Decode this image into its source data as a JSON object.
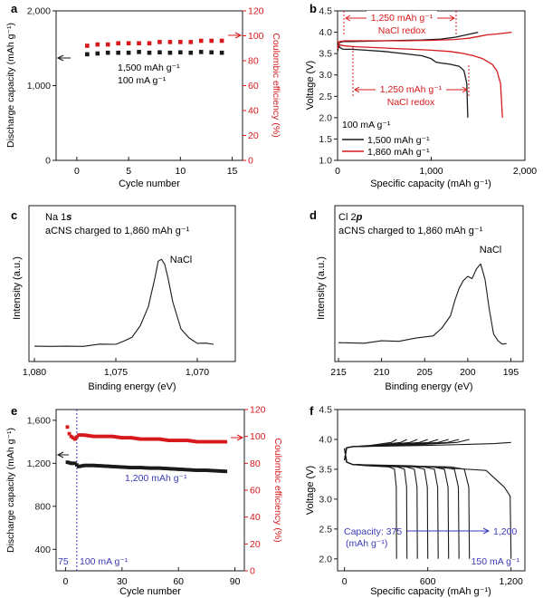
{
  "colors": {
    "black": "#1a1a1a",
    "red": "#d7191c",
    "blue": "#3a3ab8"
  },
  "chart_data": [
    {
      "panel": "a",
      "type": "scatter",
      "xlabel": "Cycle number",
      "ylabel_left": "Discharge capacity (mAh g⁻¹)",
      "ylabel_right": "Coulombic efficiency (%)",
      "xlim": [
        -2,
        16
      ],
      "ylim_left": [
        0,
        2000
      ],
      "ylim_right": [
        0,
        120
      ],
      "xticks": [
        "0",
        "5",
        "10",
        "15"
      ],
      "yticks_left": [
        "0",
        "1,000",
        "2,000"
      ],
      "yticks_right": [
        "0",
        "20",
        "40",
        "60",
        "80",
        "100",
        "120"
      ],
      "annotation_1": "1,500 mAh g⁻¹",
      "annotation_2": "100 mA g⁻¹",
      "series": [
        {
          "name": "Discharge capacity",
          "axis": "left",
          "color": "#1a1a1a",
          "x": [
            1,
            2,
            3,
            4,
            5,
            6,
            7,
            8,
            9,
            10,
            11,
            12,
            13,
            14
          ],
          "values": [
            1420,
            1430,
            1440,
            1440,
            1440,
            1450,
            1440,
            1445,
            1440,
            1445,
            1440,
            1450,
            1445,
            1440
          ]
        },
        {
          "name": "Coulombic efficiency",
          "axis": "right",
          "color": "#d7191c",
          "x": [
            1,
            2,
            3,
            4,
            5,
            6,
            7,
            8,
            9,
            10,
            11,
            12,
            13,
            14
          ],
          "values": [
            92,
            93,
            93,
            94,
            94,
            94,
            94,
            95,
            95,
            95,
            95,
            96,
            96,
            96
          ]
        }
      ]
    },
    {
      "panel": "b",
      "type": "line",
      "xlabel": "Specific capacity (mAh g⁻¹)",
      "ylabel": "Voltage (V)",
      "xlim": [
        0,
        2000
      ],
      "ylim": [
        1.0,
        4.5
      ],
      "xticks": [
        "0",
        "1,000",
        "2,000"
      ],
      "yticks": [
        "1.0",
        "1.5",
        "2.0",
        "2.5",
        "3.0",
        "3.5",
        "4.0",
        "4.5"
      ],
      "annotation_top_1": "1,250 mAh g⁻¹",
      "annotation_top_2": "NaCl redox",
      "annotation_mid_1": "1,250 mAh g⁻¹",
      "annotation_mid_2": "NaCl redox",
      "legend_title": "100 mA g⁻¹",
      "series": [
        {
          "name": "1,500 mAh g⁻¹",
          "color": "#1a1a1a",
          "role": "charge",
          "x": [
            0,
            20,
            60,
            150,
            300,
            500,
            700,
            900,
            1100,
            1250,
            1400,
            1500
          ],
          "values": [
            3.55,
            3.76,
            3.78,
            3.78,
            3.79,
            3.8,
            3.81,
            3.82,
            3.84,
            3.88,
            3.95,
            4.0
          ]
        },
        {
          "name": "1,500 mAh g⁻¹",
          "color": "#1a1a1a",
          "role": "discharge",
          "x": [
            0,
            20,
            60,
            150,
            300,
            500,
            700,
            900,
            1000,
            1050,
            1100,
            1200,
            1300,
            1350,
            1380,
            1390
          ],
          "values": [
            3.8,
            3.65,
            3.6,
            3.6,
            3.58,
            3.55,
            3.5,
            3.45,
            3.38,
            3.3,
            3.28,
            3.25,
            3.2,
            3.1,
            2.8,
            2.0
          ]
        },
        {
          "name": "1,860 mAh g⁻¹",
          "color": "#d7191c",
          "role": "charge",
          "x": [
            0,
            20,
            80,
            200,
            400,
            700,
            1000,
            1250,
            1400,
            1500,
            1600,
            1700,
            1860
          ],
          "values": [
            3.6,
            3.78,
            3.8,
            3.8,
            3.8,
            3.8,
            3.81,
            3.83,
            3.86,
            3.9,
            3.94,
            3.96,
            4.0
          ]
        },
        {
          "name": "1,860 mAh g⁻¹",
          "color": "#d7191c",
          "role": "discharge",
          "x": [
            0,
            20,
            80,
            200,
            400,
            600,
            800,
            1000,
            1200,
            1350,
            1450,
            1550,
            1650,
            1700,
            1740,
            1760
          ],
          "values": [
            3.8,
            3.7,
            3.68,
            3.66,
            3.64,
            3.62,
            3.6,
            3.58,
            3.55,
            3.5,
            3.45,
            3.38,
            3.25,
            3.1,
            2.8,
            2.0
          ]
        }
      ]
    },
    {
      "panel": "c",
      "type": "line",
      "xlabel": "Binding energy (eV)",
      "ylabel": "Intensity (a.u.)",
      "label_1": "Na 1",
      "label_1_orbital": "s",
      "label_2": "aCNS charged to 1,860 mAh g⁻¹",
      "peak_label": "NaCl",
      "xlim": [
        1080,
        1068
      ],
      "xticks": [
        "1,080",
        "1,075",
        "1,070"
      ],
      "series": [
        {
          "x": [
            1080,
            1079,
            1078,
            1077,
            1076,
            1075,
            1074.5,
            1074,
            1073.5,
            1073,
            1072.8,
            1072.6,
            1072.4,
            1072.2,
            1072,
            1071.8,
            1071.5,
            1071,
            1070.5,
            1070,
            1069.5,
            1069
          ],
          "values": [
            0.02,
            0.03,
            0.02,
            0.03,
            0.04,
            0.05,
            0.07,
            0.12,
            0.22,
            0.42,
            0.55,
            0.7,
            0.85,
            0.88,
            0.82,
            0.7,
            0.45,
            0.2,
            0.1,
            0.06,
            0.05,
            0.05
          ]
        }
      ]
    },
    {
      "panel": "d",
      "type": "line",
      "xlabel": "Binding energy (eV)",
      "ylabel": "Intensity (a.u.)",
      "label_1": "Cl 2",
      "label_1_orbital": "p",
      "label_2": "aCNS charged to 1,860 mAh g⁻¹",
      "peak_label": "NaCl",
      "xlim": [
        215,
        194
      ],
      "xticks": [
        "215",
        "210",
        "205",
        "200",
        "195"
      ],
      "series": [
        {
          "x": [
            215,
            212,
            210,
            208,
            206,
            204,
            203,
            202,
            201.5,
            201,
            200.5,
            200,
            199.5,
            199,
            198.5,
            198,
            197.5,
            197,
            196.5,
            196,
            195.5
          ],
          "values": [
            0.04,
            0.05,
            0.06,
            0.07,
            0.09,
            0.13,
            0.2,
            0.35,
            0.5,
            0.65,
            0.72,
            0.78,
            0.74,
            0.86,
            0.9,
            0.75,
            0.4,
            0.15,
            0.06,
            0.04,
            0.03
          ]
        }
      ]
    },
    {
      "panel": "e",
      "type": "scatter",
      "xlabel": "Cycle number",
      "ylabel_left": "Discharge capacity (mAh g⁻¹)",
      "ylabel_right": "Coulombic efficiency (%)",
      "xlim": [
        -5,
        95
      ],
      "ylim_left": [
        200,
        1700
      ],
      "ylim_right": [
        0,
        120
      ],
      "xticks": [
        "0",
        "30",
        "60",
        "90"
      ],
      "yticks_left": [
        "400",
        "800",
        "1,200",
        "1,600"
      ],
      "yticks_right": [
        "0",
        "20",
        "40",
        "60",
        "80",
        "100",
        "120"
      ],
      "annotation_capacity": "1,200 mAh g⁻¹",
      "label_75": "75",
      "label_100": "100 mA g⁻¹",
      "divider_cycle": 6,
      "series": [
        {
          "name": "Discharge capacity",
          "axis": "left",
          "color": "#1a1a1a",
          "x": [
            1,
            2,
            3,
            4,
            5,
            7,
            10,
            15,
            20,
            25,
            30,
            35,
            40,
            45,
            50,
            55,
            60,
            65,
            70,
            75,
            80,
            85
          ],
          "values": [
            1210,
            1205,
            1200,
            1200,
            1200,
            1170,
            1180,
            1180,
            1175,
            1170,
            1165,
            1160,
            1160,
            1155,
            1155,
            1150,
            1145,
            1140,
            1135,
            1135,
            1130,
            1125
          ]
        },
        {
          "name": "Coulombic efficiency",
          "axis": "right",
          "color": "#d7191c",
          "x": [
            1,
            2,
            3,
            4,
            5,
            7,
            10,
            15,
            20,
            25,
            30,
            35,
            40,
            45,
            50,
            55,
            60,
            65,
            70,
            75,
            80,
            85
          ],
          "values": [
            107,
            102,
            100,
            99,
            98,
            101,
            101,
            100,
            100,
            100,
            99,
            99,
            98,
            98,
            98,
            97,
            97,
            97,
            96,
            96,
            96,
            96
          ]
        }
      ]
    },
    {
      "panel": "f",
      "type": "line",
      "xlabel": "Specific capacity (mAh g⁻¹)",
      "ylabel": "Voltage (V)",
      "xlim": [
        -50,
        1300
      ],
      "ylim": [
        1.8,
        4.5
      ],
      "xticks": [
        "0",
        "600",
        "1,200"
      ],
      "yticks": [
        "2.0",
        "2.5",
        "3.0",
        "3.5",
        "4.0",
        "4.5"
      ],
      "annotation_capacity_1": "Capacity: 375",
      "annotation_capacity_unit": "(mAh g⁻¹)",
      "annotation_capacity_2": "1,200",
      "annotation_rate": "150 mA g⁻¹",
      "capacities": [
        375,
        450,
        525,
        600,
        675,
        750,
        825,
        900,
        1200
      ]
    }
  ]
}
